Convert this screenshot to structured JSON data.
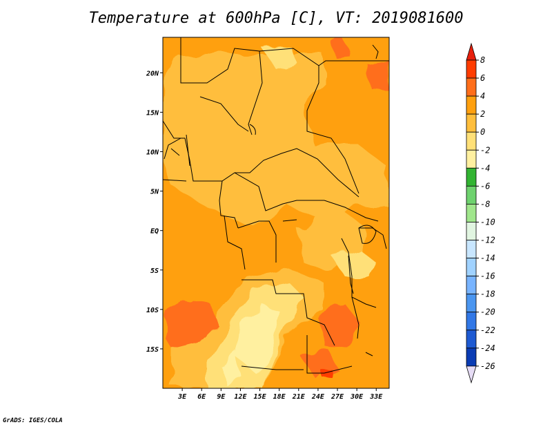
{
  "title": "Temperature at 600hPa [C], VT: 2019081600",
  "credit": "GrADS: IGES/COLA",
  "map": {
    "region": "Central/Southern Africa",
    "lon_range": [
      0,
      35
    ],
    "lat_range": [
      -20,
      24.5
    ],
    "lat_ticks": [
      "20N",
      "15N",
      "10N",
      "5N",
      "EQ",
      "5S",
      "10S",
      "15S"
    ],
    "lat_values": [
      20,
      15,
      10,
      5,
      0,
      -5,
      -10,
      -15
    ],
    "lon_ticks": [
      "3E",
      "6E",
      "9E",
      "12E",
      "15E",
      "18E",
      "21E",
      "24E",
      "27E",
      "30E",
      "33E"
    ],
    "lon_values": [
      3,
      6,
      9,
      12,
      15,
      18,
      21,
      24,
      27,
      30,
      33
    ],
    "dominant_range_c": "0 to 4",
    "field_colors": {
      "above_6": "#ff3c00",
      "4_to_6": "#ff6e1a",
      "2_to_4": "#ffa00f",
      "0_to_2": "#ffbe3c",
      "minus2_to_0": "#ffe078",
      "minus4_to_minus2": "#fff0a0"
    }
  },
  "colorbar": {
    "labels": [
      "8",
      "6",
      "4",
      "2",
      "0",
      "-2",
      "-4",
      "-6",
      "-8",
      "-10",
      "-12",
      "-14",
      "-16",
      "-18",
      "-20",
      "-22",
      "-24",
      "-26"
    ],
    "colors": [
      "#e8200d",
      "#ff3c00",
      "#ff6e1a",
      "#ffa00f",
      "#ffbe3c",
      "#ffe078",
      "#fff0a0",
      "#32b432",
      "#6ed26e",
      "#a0e68c",
      "#e1f5e1",
      "#c8e6ff",
      "#a0d2ff",
      "#78b4ff",
      "#4b96f0",
      "#3278e6",
      "#1e5ad2",
      "#0a3cb4",
      "#061e78"
    ],
    "end_colors": {
      "top": "#e8200d",
      "bottom": "#e6dcf5"
    }
  }
}
